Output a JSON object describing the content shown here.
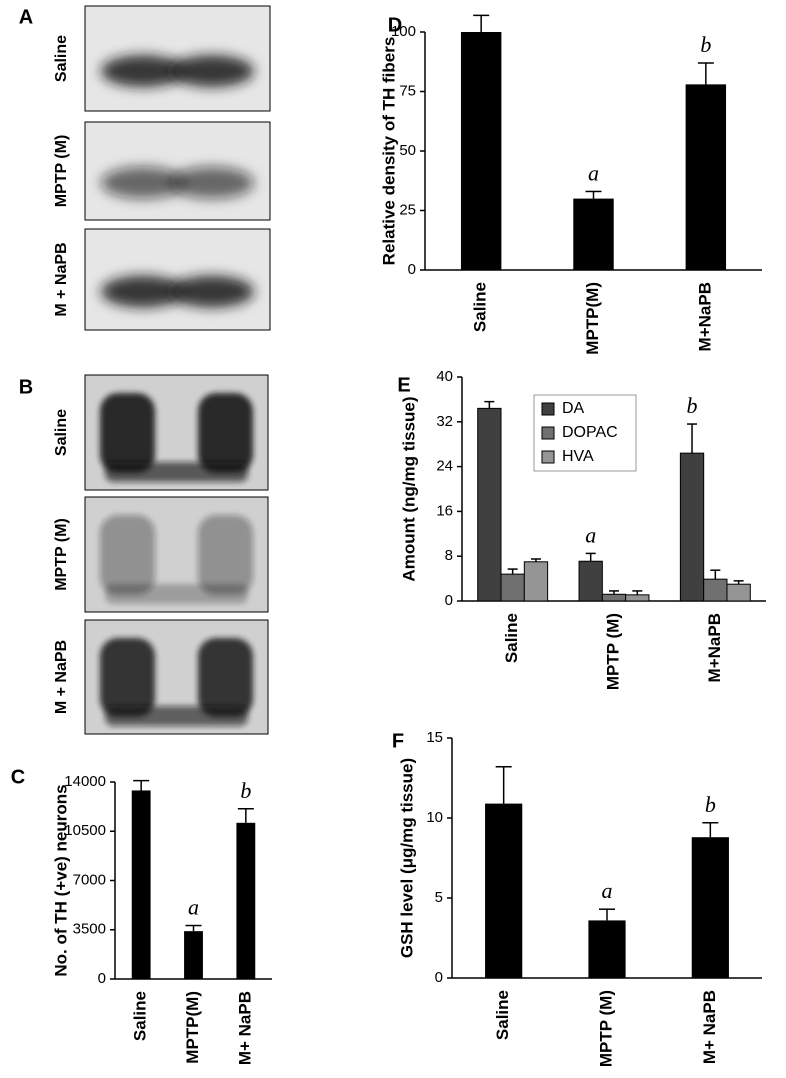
{
  "image_panels": [
    {
      "label": "A",
      "rows": [
        "Saline",
        "MPTP (M)",
        "M + NaPB"
      ]
    },
    {
      "label": "B",
      "rows": [
        "Saline",
        "MPTP (M)",
        "M + NaPB"
      ]
    }
  ],
  "chart_data": [
    {
      "panel": "C",
      "type": "bar",
      "ylabel": "No. of TH (+ve) neurons",
      "categories": [
        "Saline",
        "MPTP(M)",
        "M+ NaPB"
      ],
      "values": [
        13400,
        3400,
        11100
      ],
      "errors": [
        700,
        400,
        1000
      ],
      "color": "#000000",
      "ylim": [
        0,
        14000
      ],
      "yticks": [
        0,
        3500,
        7000,
        10500,
        14000
      ],
      "annotations": [
        {
          "category": "MPTP(M)",
          "text": "a"
        },
        {
          "category": "M+ NaPB",
          "text": "b"
        }
      ]
    },
    {
      "panel": "D",
      "type": "bar",
      "ylabel": "Relative density of TH fibers",
      "categories": [
        "Saline",
        "MPTP(M)",
        "M+NaPB"
      ],
      "values": [
        100,
        30,
        78
      ],
      "errors": [
        7,
        3,
        9
      ],
      "color": "#000000",
      "ylim": [
        0,
        100
      ],
      "yticks": [
        0,
        25,
        50,
        75,
        100
      ],
      "annotations": [
        {
          "category": "MPTP(M)",
          "text": "a"
        },
        {
          "category": "M+NaPB",
          "text": "b"
        }
      ]
    },
    {
      "panel": "E",
      "type": "grouped-bar",
      "ylabel": "Amount (ng/mg tissue)",
      "categories": [
        "Saline",
        "MPTP (M)",
        "M+NaPB"
      ],
      "series": [
        {
          "name": "DA",
          "color": "#404040",
          "values": [
            34.4,
            7.1,
            26.4
          ],
          "errors": [
            1.2,
            1.4,
            5.2
          ]
        },
        {
          "name": "DOPAC",
          "color": "#707070",
          "values": [
            4.8,
            1.2,
            3.9
          ],
          "errors": [
            0.9,
            0.6,
            1.6
          ]
        },
        {
          "name": "HVA",
          "color": "#959595",
          "values": [
            7.0,
            1.1,
            3.0
          ],
          "errors": [
            0.5,
            0.7,
            0.6
          ]
        }
      ],
      "ylim": [
        0,
        40
      ],
      "yticks": [
        0,
        8,
        16,
        24,
        32,
        40
      ],
      "legend": "top",
      "annotations": [
        {
          "category": "MPTP (M)",
          "text": "a"
        },
        {
          "category": "M+NaPB",
          "text": "b"
        }
      ]
    },
    {
      "panel": "F",
      "type": "bar",
      "ylabel": "GSH level (μg/mg tissue)",
      "categories": [
        "Saline",
        "MPTP (M)",
        "M+ NaPB"
      ],
      "values": [
        10.9,
        3.6,
        8.8
      ],
      "errors": [
        2.3,
        0.7,
        0.9
      ],
      "color": "#000000",
      "ylim": [
        0,
        15
      ],
      "yticks": [
        0,
        5,
        10,
        15
      ],
      "annotations": [
        {
          "category": "MPTP (M)",
          "text": "a"
        },
        {
          "category": "M+ NaPB",
          "text": "b"
        }
      ]
    }
  ]
}
